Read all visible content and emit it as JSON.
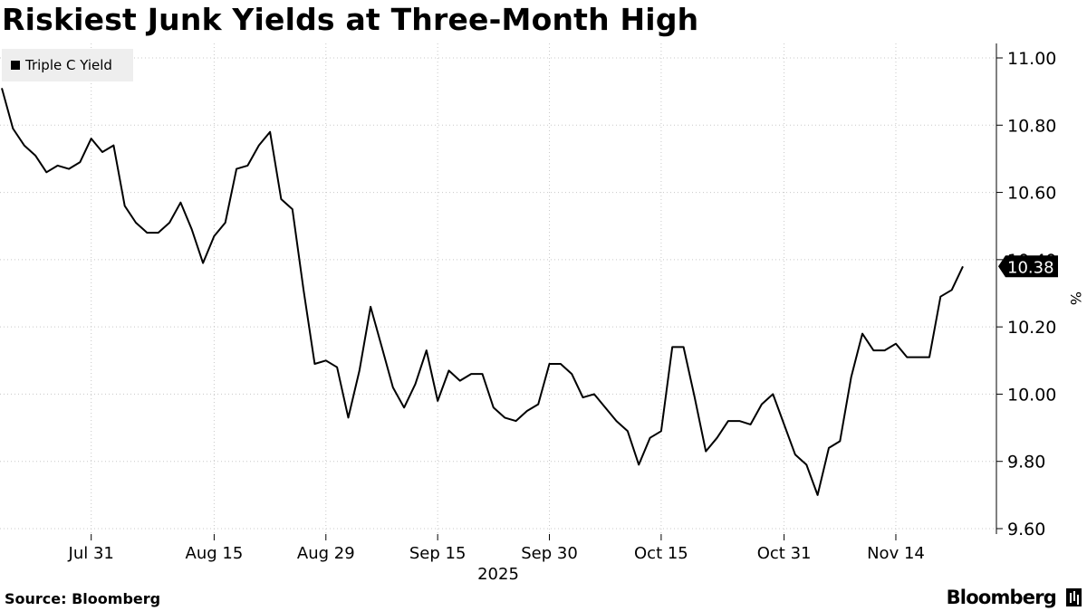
{
  "title": "Riskiest Junk Yields at Three-Month High",
  "source": "Source: Bloomberg",
  "brand": "Bloomberg",
  "chart_data": {
    "type": "line",
    "title": "Riskiest Junk Yields at Three-Month High",
    "ylabel": "%",
    "xlabel": "2025",
    "ylim": [
      9.6,
      11.0
    ],
    "yticks": [
      9.6,
      9.8,
      10.0,
      10.2,
      10.4,
      10.6,
      10.8,
      11.0
    ],
    "ytick_labels": [
      "9.60",
      "9.80",
      "10.00",
      "10.20",
      "10.40",
      "10.60",
      "10.80",
      "11.00"
    ],
    "xtick_labels": [
      "Jul 31",
      "Aug 15",
      "Aug 29",
      "Sep 15",
      "Sep 30",
      "Oct 15",
      "Oct 31",
      "Nov 14"
    ],
    "xtick_index": [
      8,
      19,
      29,
      39,
      49,
      59,
      70,
      80
    ],
    "legend_position": "top-left",
    "grid": "dotted",
    "last_value_label": "10.38",
    "series": [
      {
        "name": "Triple C Yield",
        "color": "#000000",
        "values": [
          10.91,
          10.79,
          10.74,
          10.71,
          10.66,
          10.68,
          10.67,
          10.69,
          10.76,
          10.72,
          10.74,
          10.56,
          10.51,
          10.48,
          10.48,
          10.51,
          10.57,
          10.49,
          10.39,
          10.47,
          10.51,
          10.67,
          10.68,
          10.74,
          10.78,
          10.58,
          10.55,
          10.31,
          10.09,
          10.1,
          10.08,
          9.93,
          10.07,
          10.26,
          10.14,
          10.02,
          9.96,
          10.03,
          10.13,
          9.98,
          10.07,
          10.04,
          10.06,
          10.06,
          9.96,
          9.93,
          9.92,
          9.95,
          9.97,
          10.09,
          10.09,
          10.06,
          9.99,
          10.0,
          9.96,
          9.92,
          9.89,
          9.79,
          9.87,
          9.89,
          10.14,
          10.14,
          9.99,
          9.83,
          9.87,
          9.92,
          9.92,
          9.91,
          9.97,
          10.0,
          9.91,
          9.82,
          9.79,
          9.7,
          9.84,
          9.86,
          10.05,
          10.18,
          10.13,
          10.13,
          10.15,
          10.11,
          10.11,
          10.11,
          10.29,
          10.31,
          10.38
        ]
      }
    ]
  }
}
